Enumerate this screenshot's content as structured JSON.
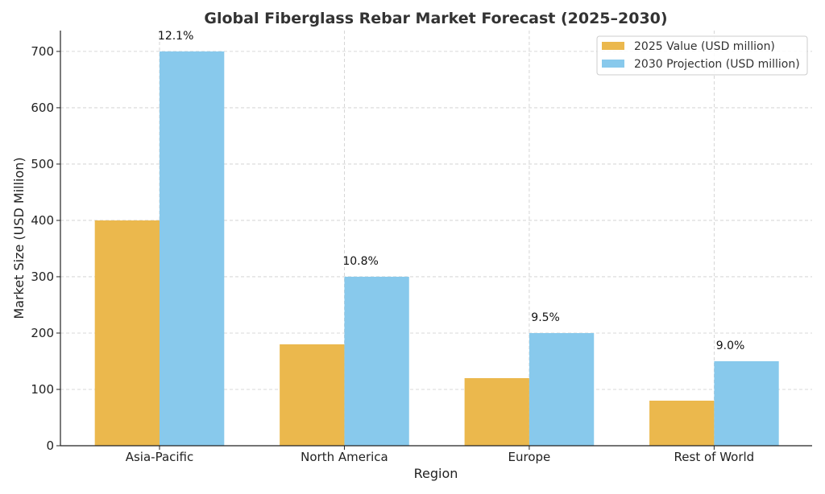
{
  "chart_data": {
    "type": "bar",
    "title": "Global Fiberglass Rebar Market Forecast (2025–2030)",
    "xlabel": "Region",
    "ylabel": "Market Size (USD Million)",
    "categories": [
      "Asia-Pacific",
      "North America",
      "Europe",
      "Rest of World"
    ],
    "series": [
      {
        "name": "2025 Value (USD million)",
        "values": [
          400,
          180,
          120,
          80
        ],
        "color": "#EBB84D"
      },
      {
        "name": "2030 Projection (USD million)",
        "values": [
          700,
          300,
          200,
          150
        ],
        "color": "#88C9EC"
      }
    ],
    "annotations": [
      "12.1%",
      "10.8%",
      "9.5%",
      "9.0%"
    ],
    "yticks": [
      0,
      100,
      200,
      300,
      400,
      500,
      600,
      700
    ],
    "ylim": [
      0,
      737
    ],
    "grid": true,
    "legend": "top-right"
  }
}
